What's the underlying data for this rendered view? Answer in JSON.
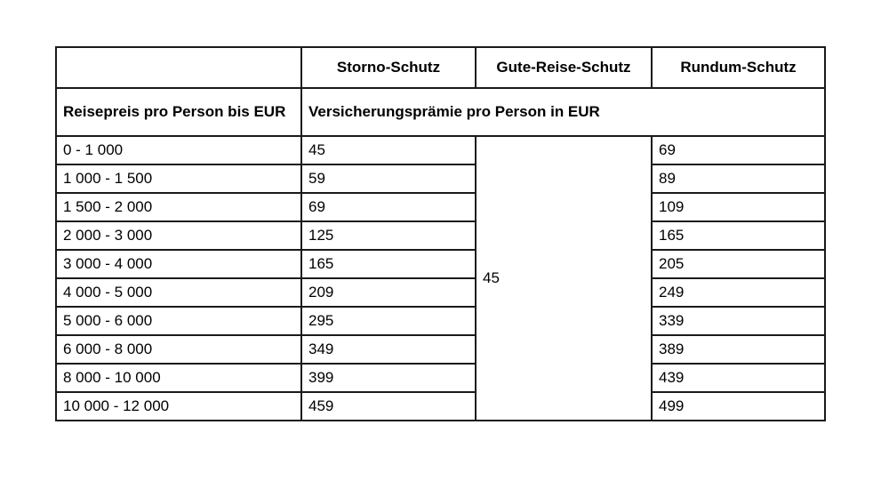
{
  "table": {
    "columns": [
      "",
      "Storno-Schutz",
      "Gute-Reise-Schutz",
      "Rundum-Schutz"
    ],
    "subheader": {
      "row_label_header": "Reisepreis pro Person bis EUR",
      "premium_header": "Versicherungsprämie pro Person in EUR"
    },
    "merged_gute_reise_value": "45",
    "rows": [
      {
        "range": "0 - 1 000",
        "storno": "45",
        "rundum": "69"
      },
      {
        "range": "1 000 - 1 500",
        "storno": "59",
        "rundum": "89"
      },
      {
        "range": "1 500 - 2 000",
        "storno": "69",
        "rundum": "109"
      },
      {
        "range": "2 000 - 3 000",
        "storno": "125",
        "rundum": "165"
      },
      {
        "range": "3 000 - 4 000",
        "storno": "165",
        "rundum": "205"
      },
      {
        "range": "4 000 - 5 000",
        "storno": "209",
        "rundum": "249"
      },
      {
        "range": "5 000 - 6 000",
        "storno": "295",
        "rundum": "339"
      },
      {
        "range": "6 000 - 8 000",
        "storno": "349",
        "rundum": "389"
      },
      {
        "range": "8 000 - 10 000",
        "storno": "399",
        "rundum": "439"
      },
      {
        "range": "10 000 - 12 000",
        "storno": "459",
        "rundum": "499"
      }
    ],
    "colors": {
      "border": "#1a1a1a",
      "background": "#ffffff",
      "text": "#000000"
    }
  }
}
